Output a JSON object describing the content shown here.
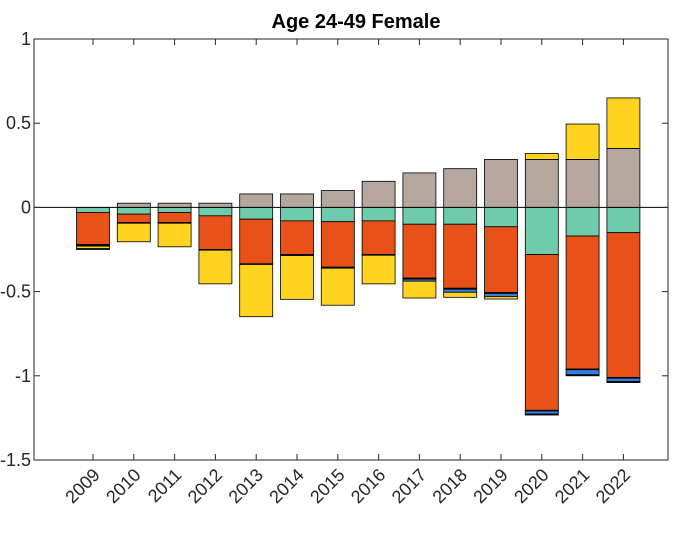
{
  "chart_data": {
    "type": "bar",
    "stacked": true,
    "title": "Age 24-49 Female",
    "xlabel": "",
    "ylabel": "",
    "ylim": [
      -1.5,
      1
    ],
    "yticks": [
      1,
      0.5,
      0,
      -0.5,
      -1,
      -1.5
    ],
    "ytick_labels": [
      "1",
      "0.5",
      "0",
      "-0.5",
      "-1",
      "-1.5"
    ],
    "grid": false,
    "legend": "none",
    "categories": [
      "2009",
      "2010",
      "2011",
      "2012",
      "2013",
      "2014",
      "2015",
      "2016",
      "2017",
      "2018",
      "2019",
      "2020",
      "2021",
      "2022"
    ],
    "series": [
      {
        "color": "#b5a69e",
        "values": [
          0.0,
          0.025,
          0.025,
          0.025,
          0.08,
          0.08,
          0.1,
          0.155,
          0.205,
          0.23,
          0.285,
          0.285,
          0.285,
          0.35
        ]
      },
      {
        "color": "#fed420",
        "values": [
          0.0,
          0.0,
          0.0,
          0.0,
          0.0,
          0.0,
          0.0,
          0.0,
          0.0,
          0.0,
          0.0,
          0.035,
          0.21,
          0.3
        ]
      },
      {
        "color": "#6fcbab",
        "values": [
          -0.03,
          -0.04,
          -0.03,
          -0.05,
          -0.07,
          -0.08,
          -0.085,
          -0.08,
          -0.1,
          -0.1,
          -0.115,
          -0.28,
          -0.17,
          -0.15
        ]
      },
      {
        "color": "#e85117",
        "values": [
          -0.19,
          -0.05,
          -0.06,
          -0.2,
          -0.265,
          -0.2,
          -0.27,
          -0.2,
          -0.32,
          -0.38,
          -0.39,
          -0.925,
          -0.79,
          -0.86
        ]
      },
      {
        "color": "#000000",
        "values": [
          -0.01,
          -0.004,
          -0.004,
          -0.004,
          -0.004,
          -0.006,
          -0.006,
          -0.004,
          -0.006,
          -0.006,
          -0.006,
          -0.004,
          -0.004,
          -0.004
        ]
      },
      {
        "color": "#357ee5",
        "values": [
          0.0,
          0.0,
          0.0,
          0.0,
          0.0,
          0.0,
          0.0,
          0.0,
          -0.012,
          -0.018,
          -0.018,
          -0.018,
          -0.03,
          -0.02
        ]
      },
      {
        "color": "#fed420",
        "values": [
          -0.015,
          -0.11,
          -0.14,
          -0.2,
          -0.31,
          -0.26,
          -0.22,
          -0.17,
          -0.1,
          -0.03,
          -0.015,
          0.0,
          0.0,
          0.0
        ]
      },
      {
        "color": "#000000",
        "values": [
          -0.005,
          0.0,
          0.0,
          0.0,
          0.0,
          0.0,
          0.0,
          0.0,
          0.0,
          0.0,
          0.0,
          -0.006,
          -0.006,
          -0.006
        ]
      }
    ]
  }
}
